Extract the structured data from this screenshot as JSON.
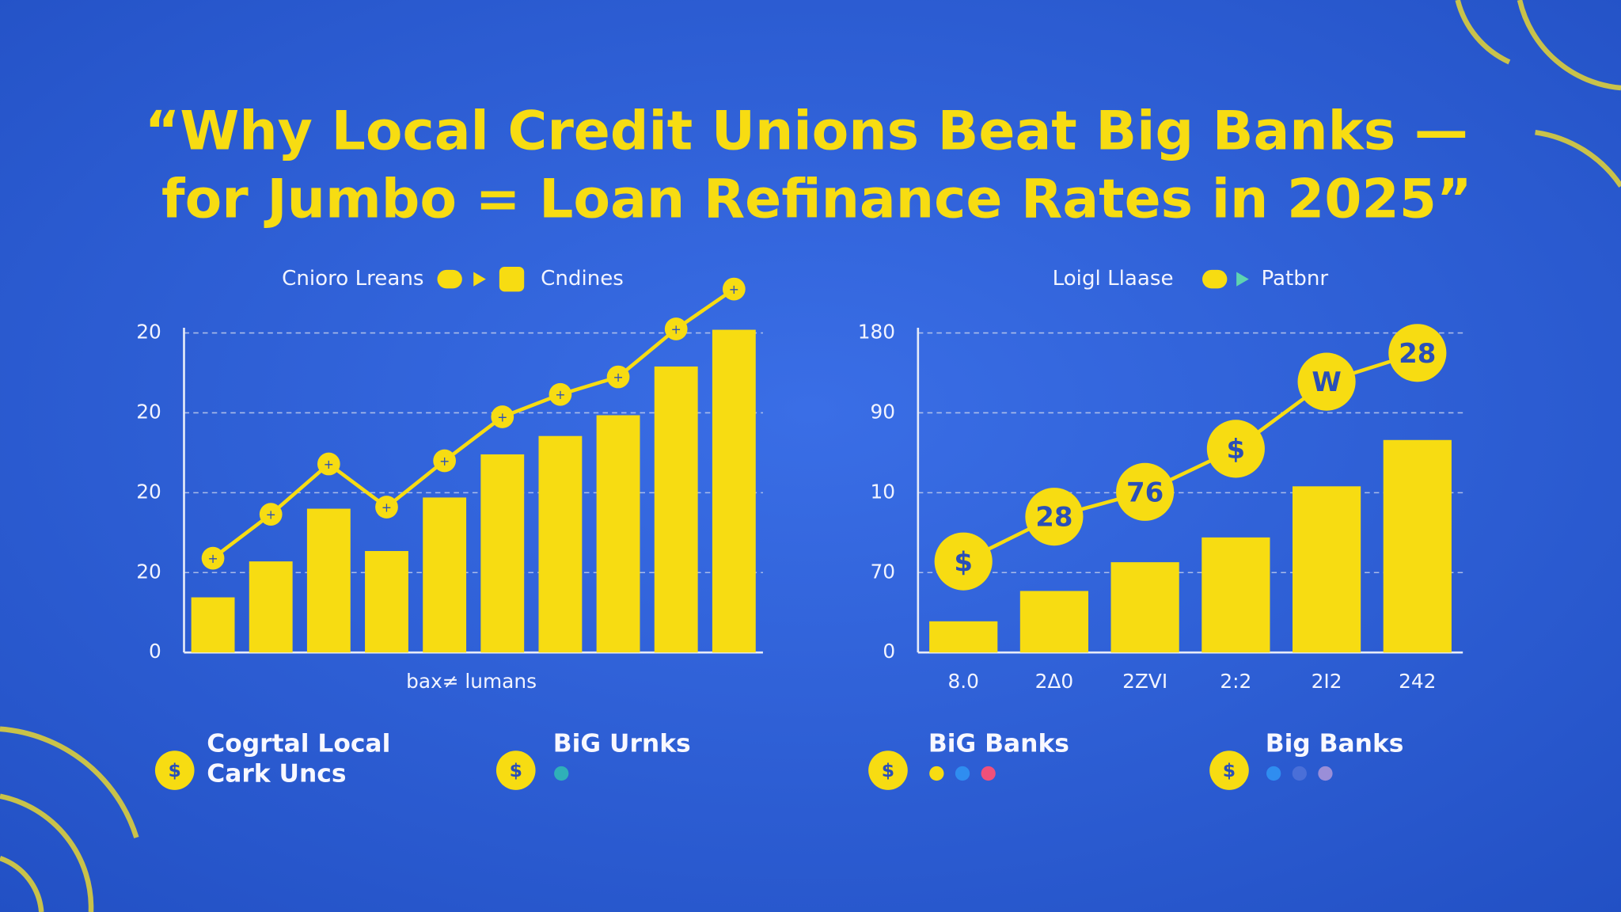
{
  "page": {
    "title_lines": [
      "“Why Local Credit Unions Beat Big Banks —",
      "for Jumbo = Loan Refinance Rates in 2025”"
    ],
    "legend_items": [
      [
        "Cogrtal Local",
        "Cark Uncs"
      ],
      [
        "BiG Urnks"
      ],
      [
        "BiG Banks"
      ],
      [
        "Big Banks"
      ]
    ]
  },
  "chart_data": [
    {
      "type": "combo",
      "x_label": "bax≠ lumans",
      "ylim": [
        0,
        4
      ],
      "yticks": [
        {
          "value": 0,
          "label": "0"
        },
        {
          "value": 1,
          "label": "20"
        },
        {
          "value": 2,
          "label": "20"
        },
        {
          "value": 3,
          "label": "20"
        },
        {
          "value": 4,
          "label": "20"
        }
      ],
      "grid": true,
      "series": [
        {
          "name": "Cnioro Lreans",
          "type": "line",
          "color": "#f7dc12",
          "values": [
            1.18,
            1.73,
            2.36,
            1.82,
            2.4,
            2.95,
            3.23,
            3.45,
            4.05,
            4.55
          ]
        },
        {
          "name": "Cndines",
          "type": "bar",
          "color": "#f7dc12",
          "values": [
            0.69,
            1.14,
            1.8,
            1.27,
            1.94,
            2.48,
            2.71,
            2.97,
            3.58,
            4.04
          ]
        }
      ]
    },
    {
      "type": "combo",
      "categories": [
        "8.0",
        "2Δ0",
        "2ZVI",
        "2:2",
        "2I2",
        "242"
      ],
      "ylim": [
        0,
        4
      ],
      "yticks": [
        {
          "value": 0,
          "label": "0"
        },
        {
          "value": 1,
          "label": "70"
        },
        {
          "value": 2,
          "label": "10"
        },
        {
          "value": 3,
          "label": "90"
        },
        {
          "value": 4,
          "label": "180"
        }
      ],
      "grid": true,
      "series": [
        {
          "name": "Loigl Llaase",
          "type": "line",
          "color": "#f7dc12",
          "values": [
            1.14,
            1.7,
            2.01,
            2.55,
            3.39,
            3.75
          ],
          "value_labels": [
            "$",
            "28",
            "76",
            "$",
            "W",
            "28"
          ]
        },
        {
          "name": "Patbnr",
          "type": "bar",
          "color": "#f7dc12",
          "values": [
            0.39,
            0.77,
            1.13,
            1.44,
            2.08,
            2.66
          ]
        }
      ]
    }
  ]
}
